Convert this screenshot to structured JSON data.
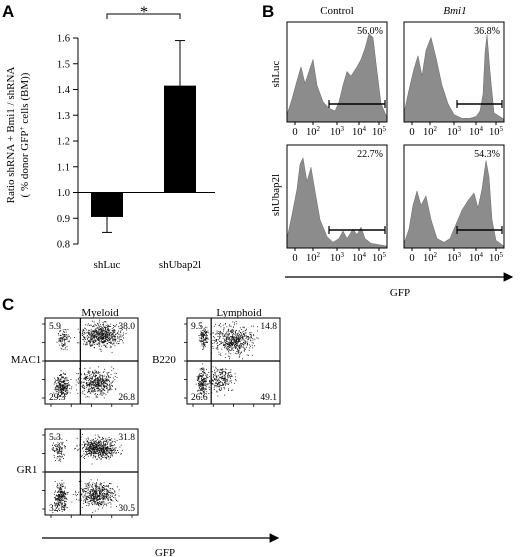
{
  "panels": {
    "a": {
      "letter": "A",
      "ylabel_lines": [
        "Ratio shRNA + Bmi1 / shRNA",
        "( % donor GFP",
        "cells (BM))"
      ],
      "ylabel_sup": "+",
      "significance": "*"
    },
    "b": {
      "letter": "B",
      "col_headers": [
        "Control",
        "Bmi1"
      ],
      "row_headers": [
        "shLuc",
        "shUbap2l"
      ],
      "tick_labels": [
        "0",
        "10",
        "2",
        "10",
        "3",
        "10",
        "4",
        "10",
        "5"
      ],
      "tick_set": [
        {
          "base": "0",
          "exp": ""
        },
        {
          "base": "10",
          "exp": "2"
        },
        {
          "base": "10",
          "exp": "3"
        },
        {
          "base": "10",
          "exp": "4"
        },
        {
          "base": "10",
          "exp": "5"
        }
      ],
      "histograms": [
        {
          "id": "shLuc-control",
          "percent": "56.0%"
        },
        {
          "id": "shLuc-bmi1",
          "percent": "36.8%"
        },
        {
          "id": "shUbap2l-control",
          "percent": "22.7%"
        },
        {
          "id": "shUbap2l-bmi1",
          "percent": "54.3%"
        }
      ],
      "xlabel": "GFP"
    },
    "c": {
      "letter": "C",
      "col_headers": [
        "Myeloid",
        "Lymphoid"
      ],
      "plots": [
        {
          "id": "mac1",
          "marker": "MAC1",
          "quadrants": {
            "tl": "5.9",
            "tr": "38.0",
            "bl": "29.3",
            "br": "26.8"
          }
        },
        {
          "id": "b220",
          "marker": "B220",
          "quadrants": {
            "tl": "9.5",
            "tr": "14.8",
            "bl": "26.6",
            "br": "49.1"
          }
        },
        {
          "id": "gr1",
          "marker": "GR1",
          "quadrants": {
            "tl": "5.3",
            "tr": "31.8",
            "bl": "32.4",
            "br": "30.5"
          }
        }
      ],
      "xlabel": "GFP"
    }
  },
  "chart_data": {
    "type": "bar",
    "categories": [
      "shLuc",
      "shUbap2l"
    ],
    "values": [
      0.905,
      1.415
    ],
    "errors": [
      0.06,
      0.175
    ],
    "error_direction": [
      "down",
      "up"
    ],
    "baseline": 1.0,
    "ylim": [
      0.8,
      1.6
    ],
    "yticks": [
      "0.8",
      "0.9",
      "1.0",
      "1.1",
      "1.2",
      "1.3",
      "1.4",
      "1.5",
      "1.6"
    ],
    "ylabel": "Ratio shRNA + Bmi1 / shRNA ( % donor GFP+ cells (BM))",
    "colors": {
      "bar": "#000000"
    }
  }
}
